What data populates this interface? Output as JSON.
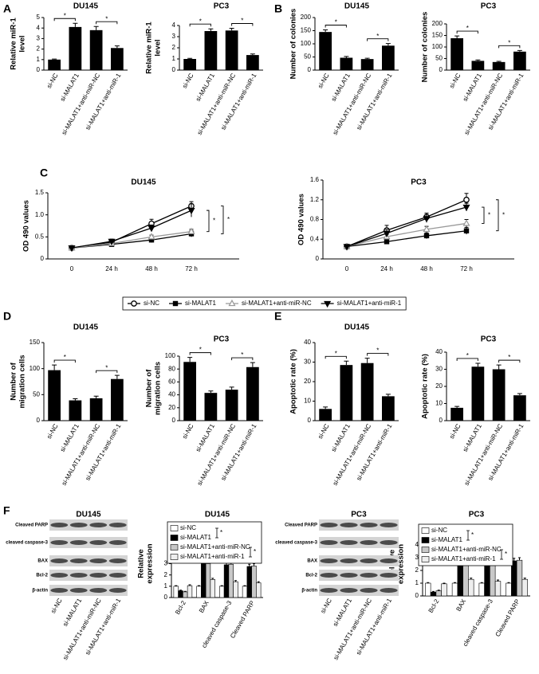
{
  "panel_labels": [
    "A",
    "B",
    "C",
    "D",
    "E",
    "F"
  ],
  "chart_data": [
    {
      "type": "bar",
      "title": "DU145",
      "y_label": [
        "Relative miR-1",
        "level"
      ],
      "color": "#000000",
      "categories": [
        "si-NC",
        "si-MALAT1",
        "si-MALAT1+anti-miR-NC",
        "si-MALAT1+anti-miR-1"
      ],
      "values": [
        1,
        4.1,
        3.8,
        2.1
      ],
      "errors": [
        0.05,
        0.35,
        0.35,
        0.2
      ],
      "ylim": [
        0,
        5
      ],
      "yticks": [
        0,
        1,
        2,
        3,
        4,
        5
      ],
      "annotations": [
        "*",
        "*"
      ]
    },
    {
      "type": "bar",
      "title": "PC3",
      "y_label": [
        "Relative miR-1",
        "level"
      ],
      "color": "#000000",
      "categories": [
        "si-NC",
        "si-MALAT1",
        "si-MALAT1+anti-miR-NC",
        "si-MALAT1+anti-miR-1"
      ],
      "values": [
        1,
        3.5,
        3.55,
        1.35
      ],
      "errors": [
        0.05,
        0.2,
        0.2,
        0.1
      ],
      "ylim": [
        0,
        4
      ],
      "yticks": [
        0,
        1,
        2,
        3,
        4
      ],
      "annotations": [
        "*",
        "*"
      ]
    },
    {
      "type": "bar",
      "title": "DU145",
      "y_label": [
        "Number of colonies"
      ],
      "color": "#000000",
      "categories": [
        "si-NC",
        "si-MALAT1",
        "si-MALAT1+anti-miR-NC",
        "si-MALAT1+anti-miR-1"
      ],
      "values": [
        145,
        47,
        42,
        93
      ],
      "errors": [
        8,
        5,
        3,
        8
      ],
      "ylim": [
        0,
        200
      ],
      "yticks": [
        0,
        50,
        100,
        150,
        200
      ],
      "annotations": [
        "*",
        "*"
      ]
    },
    {
      "type": "bar",
      "title": "PC3",
      "y_label": [
        "Number of colonies"
      ],
      "color": "#000000",
      "categories": [
        "si-NC",
        "si-MALAT1",
        "si-MALAT1+anti-miR-NC",
        "si-MALAT1+anti-miR-1"
      ],
      "values": [
        138,
        40,
        35,
        80
      ],
      "errors": [
        10,
        4,
        3,
        5
      ],
      "ylim": [
        0,
        200
      ],
      "yticks": [
        0,
        50,
        100,
        150,
        200
      ],
      "annotations": [
        "*",
        "*"
      ]
    },
    {
      "type": "line",
      "title": "DU145",
      "y_label": [
        "OD 490 values"
      ],
      "legend": "below",
      "x": [
        "0",
        "24 h",
        "48 h",
        "72 h"
      ],
      "series": [
        {
          "name": "si-NC",
          "color": "#000000",
          "marker": "circle",
          "values": [
            0.25,
            0.38,
            0.8,
            1.2
          ],
          "errors": [
            0.02,
            0.05,
            0.1,
            0.1
          ]
        },
        {
          "name": "si-MALAT1",
          "color": "#000000",
          "marker": "square",
          "values": [
            0.25,
            0.33,
            0.43,
            0.57
          ],
          "errors": [
            0.02,
            0.04,
            0.06,
            0.07
          ]
        },
        {
          "name": "si-MALAT1+anti-miR-NC",
          "color": "#999999",
          "marker": "triangle",
          "values": [
            0.25,
            0.35,
            0.5,
            0.62
          ],
          "errors": [
            0.02,
            0.03,
            0.04,
            0.05
          ]
        },
        {
          "name": "si-MALAT1+anti-miR-1",
          "color": "#000000",
          "marker": "triangle-down",
          "values": [
            0.25,
            0.4,
            0.7,
            1.1
          ],
          "errors": [
            0.02,
            0.05,
            0.07,
            0.15
          ]
        }
      ],
      "ylim": [
        0,
        1.5
      ],
      "yticks": [
        0,
        0.5,
        {
          "value": 1,
          "label": "1.0"
        },
        1.5
      ],
      "annotations": [
        "*",
        "*"
      ]
    },
    {
      "type": "line",
      "title": "PC3",
      "y_label": [
        "OD 490 values"
      ],
      "x": [
        "0",
        "24 h",
        "48 h",
        "72 h"
      ],
      "series": [
        {
          "name": "si-NC",
          "color": "#000000",
          "marker": "circle",
          "values": [
            0.25,
            0.58,
            0.85,
            1.2
          ],
          "errors": [
            0.02,
            0.1,
            0.08,
            0.13
          ]
        },
        {
          "name": "si-MALAT1",
          "color": "#000000",
          "marker": "square",
          "values": [
            0.25,
            0.35,
            0.47,
            0.57
          ],
          "errors": [
            0.02,
            0.05,
            0.06,
            0.07
          ]
        },
        {
          "name": "si-MALAT1+anti-miR-NC",
          "color": "#999999",
          "marker": "triangle",
          "values": [
            0.25,
            0.45,
            0.6,
            0.72
          ],
          "errors": [
            0.02,
            0.05,
            0.06,
            0.08
          ]
        },
        {
          "name": "si-MALAT1+anti-miR-1",
          "color": "#000000",
          "marker": "triangle-down",
          "values": [
            0.25,
            0.52,
            0.82,
            1.05
          ],
          "errors": [
            0.02,
            0.08,
            0.08,
            0.08
          ]
        }
      ],
      "ylim": [
        0,
        1.6
      ],
      "yticks": [
        0,
        0.4,
        0.8,
        1.2,
        1.6
      ],
      "annotations": [
        "*",
        "*"
      ]
    },
    {
      "type": "bar",
      "title": "DU145",
      "y_label": [
        "Number of",
        "migration cells"
      ],
      "color": "#000000",
      "categories": [
        "si-NC",
        "si-MALAT1",
        "si-MALAT1+anti-miR-NC",
        "si-MALAT1+anti-miR-1"
      ],
      "values": [
        97,
        39,
        43,
        80
      ],
      "errors": [
        10,
        3,
        4,
        7
      ],
      "ylim": [
        0,
        150
      ],
      "yticks": [
        0,
        50,
        100,
        150
      ],
      "annotations": [
        "*",
        "*"
      ]
    },
    {
      "type": "bar",
      "title": "PC3",
      "y_label": [
        "Number of",
        "migration cells"
      ],
      "color": "#000000",
      "categories": [
        "si-NC",
        "si-MALAT1",
        "si-MALAT1+anti-miR-NC",
        "si-MALAT1+anti-miR-1"
      ],
      "values": [
        91,
        43,
        48,
        83
      ],
      "errors": [
        7,
        3,
        4,
        7
      ],
      "ylim": [
        0,
        100
      ],
      "yticks": [
        0,
        20,
        40,
        60,
        80,
        100
      ],
      "annotations": [
        "*",
        "*"
      ]
    },
    {
      "type": "bar",
      "title": "DU145",
      "y_label": [
        "Apoptotic rate (%)"
      ],
      "color": "#000000",
      "categories": [
        "si-NC",
        "si-MALAT1",
        "si-MALAT1+anti-miR-NC",
        "si-MALAT1+anti-miR-1"
      ],
      "values": [
        6,
        28.5,
        29.5,
        12.5
      ],
      "errors": [
        1,
        2,
        2.5,
        1
      ],
      "ylim": [
        0,
        40
      ],
      "yticks": [
        0,
        10,
        20,
        30,
        40
      ],
      "annotations": [
        "*",
        "*"
      ]
    },
    {
      "type": "bar",
      "title": "PC3",
      "y_label": [
        "Apoptotic rate (%)"
      ],
      "color": "#000000",
      "categories": [
        "si-NC",
        "si-MALAT1",
        "si-MALAT1+anti-miR-NC",
        "si-MALAT1+anti-miR-1"
      ],
      "values": [
        7.5,
        31.5,
        30,
        14.8
      ],
      "errors": [
        0.8,
        2,
        2.5,
        1
      ],
      "ylim": [
        0,
        40
      ],
      "yticks": [
        0,
        10,
        20,
        30,
        40
      ],
      "annotations": [
        "*",
        "*"
      ]
    },
    {
      "type": "bar",
      "title": "DU145",
      "y_label": [
        "Relative",
        "expression"
      ],
      "legend": "upper left",
      "categories": [
        "Bcl-2",
        "BAX",
        "cleaved caspase-3",
        "Cleaved PARP"
      ],
      "series": [
        {
          "name": "si-NC",
          "color": "#ffffff",
          "values": [
            1,
            1,
            1,
            1
          ],
          "errors": [
            0.05,
            0.05,
            0.05,
            0.05
          ]
        },
        {
          "name": "si-MALAT1",
          "color": "#000000",
          "values": [
            0.6,
            3.1,
            2.9,
            2.75
          ],
          "errors": [
            0.05,
            0.25,
            0.2,
            0.2
          ]
        },
        {
          "name": "si-MALAT1+anti-miR-NC",
          "color": "#c8c8c8",
          "values": [
            0.5,
            3,
            2.95,
            2.8
          ],
          "errors": [
            0.05,
            0.25,
            0.15,
            0.2
          ]
        },
        {
          "name": "si-MALAT1+anti-miR-1",
          "color": "#eeeeee",
          "values": [
            1.05,
            1.6,
            1.4,
            1.3
          ],
          "errors": [
            0.08,
            0.1,
            0.1,
            0.1
          ]
        }
      ],
      "ylim": [
        0,
        6
      ],
      "yticks": [
        0,
        1,
        2,
        3
      ],
      "annotations": [
        "*",
        "*"
      ]
    },
    {
      "type": "bar",
      "title": "PC3",
      "y_label": [
        "Relative",
        "expression"
      ],
      "legend": "upper left",
      "categories": [
        "Bcl-2",
        "BAX",
        "cleaved caspase-3",
        "Cleaved PARP"
      ],
      "series": [
        {
          "name": "si-NC",
          "color": "#ffffff",
          "values": [
            1,
            1,
            1,
            1
          ],
          "errors": [
            0.05,
            0.05,
            0.05,
            0.05
          ]
        },
        {
          "name": "si-MALAT1",
          "color": "#000000",
          "values": [
            0.3,
            2.5,
            2.6,
            2.75
          ],
          "errors": [
            0.05,
            0.2,
            0.2,
            0.2
          ]
        },
        {
          "name": "si-MALAT1+anti-miR-NC",
          "color": "#c8c8c8",
          "values": [
            0.4,
            2.6,
            2.7,
            2.8
          ],
          "errors": [
            0.05,
            0.2,
            0.2,
            0.2
          ]
        },
        {
          "name": "si-MALAT1+anti-miR-1",
          "color": "#eeeeee",
          "values": [
            0.95,
            1.3,
            1.15,
            1.3
          ],
          "errors": [
            0.05,
            0.1,
            0.1,
            0.1
          ]
        }
      ],
      "ylim": [
        0,
        5
      ],
      "yticks": [
        0,
        1,
        2,
        3,
        4
      ],
      "annotations": [
        "*",
        "*"
      ]
    }
  ],
  "blots": [
    {
      "title": "DU145",
      "rows": [
        "Cleaved PARP",
        "cleaved caspase-3",
        "BAX",
        "Bcl-2",
        "β-actin"
      ]
    },
    {
      "title": "PC3",
      "rows": [
        "Cleaved PARP",
        "cleaved caspase-3",
        "BAX",
        "Bcl-2",
        "β-actin"
      ]
    }
  ]
}
